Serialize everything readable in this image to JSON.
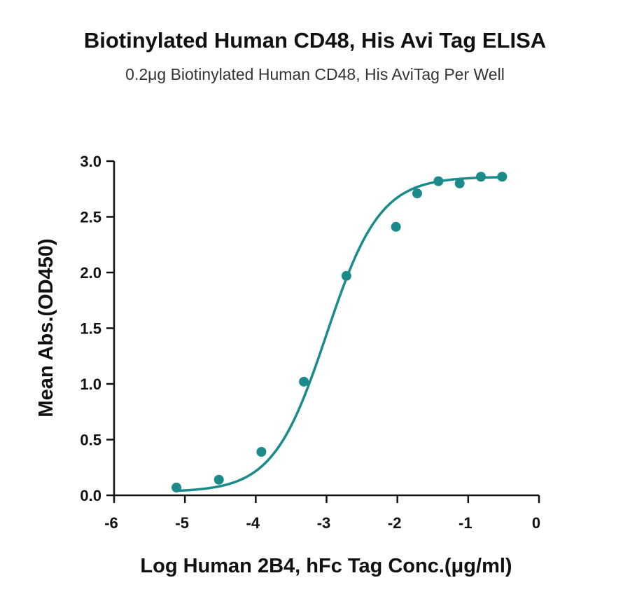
{
  "chart_data": {
    "type": "scatter",
    "title": "Biotinylated Human CD48, His Avi Tag ELISA",
    "subtitle": "0.2μg Biotinylated Human CD48, His AviTag Per Well",
    "xlabel": "Log Human 2B4, hFc Tag Conc.(μg/ml)",
    "ylabel": "Mean Abs.(OD450)",
    "xlim": [
      -6,
      0
    ],
    "ylim": [
      0,
      3.0
    ],
    "x_ticks": [
      "-6",
      "-5",
      "-4",
      "-3",
      "-2",
      "-1",
      "0"
    ],
    "y_ticks": [
      "0.0",
      "0.5",
      "1.0",
      "1.5",
      "2.0",
      "2.5",
      "3.0"
    ],
    "grid": false,
    "series": [
      {
        "x": [
          -5.12,
          -4.52,
          -3.92,
          -3.32,
          -2.72,
          -2.02,
          -1.72,
          -1.42,
          -1.12,
          -0.82,
          -0.52
        ],
        "y": [
          0.07,
          0.14,
          0.39,
          1.02,
          1.97,
          2.41,
          2.71,
          2.82,
          2.8,
          2.86,
          2.86
        ],
        "fit": "sigmoidal 4PL",
        "fit_params": {
          "bottom": 0.03,
          "top": 2.86,
          "log_ec50": -3.0,
          "hill": 1.15
        },
        "color": "#1a8a8a"
      }
    ]
  }
}
